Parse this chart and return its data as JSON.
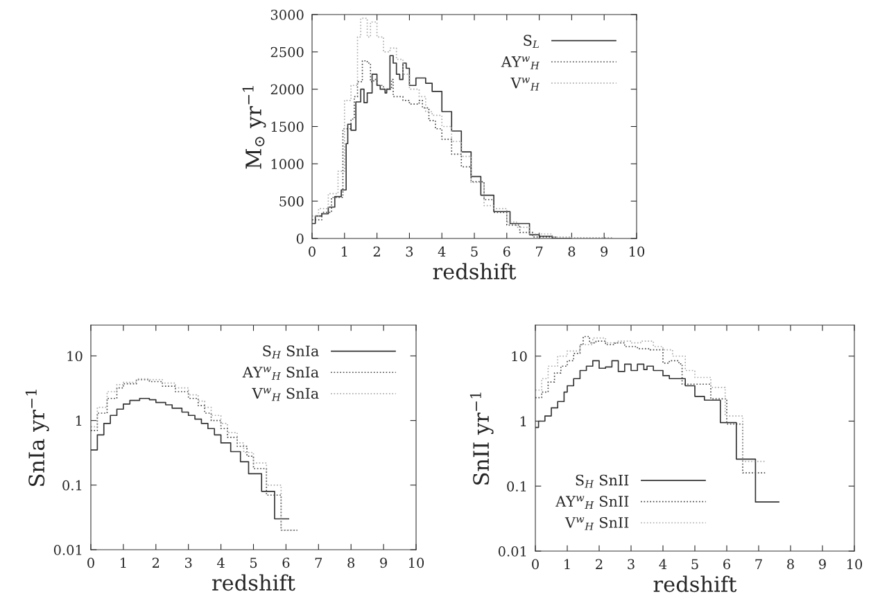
{
  "chart_data": [
    {
      "type": "step",
      "xlabel": "redshift",
      "ylabel": "M$_{⊙}$ yr$^{−1}$",
      "xlim": [
        0,
        10
      ],
      "ylim": [
        0,
        3000
      ],
      "xticks": [
        0,
        1,
        2,
        3,
        4,
        5,
        6,
        7,
        8,
        9,
        10
      ],
      "yticks": [
        0,
        500,
        1000,
        1500,
        2000,
        2500,
        3000
      ],
      "legend": "top right",
      "grid": false,
      "series": [
        {
          "name": "S$_{L}$",
          "color": "#333333",
          "line_style": "solid",
          "x": [
            0,
            0.1,
            0.3,
            0.5,
            0.7,
            0.9,
            1.05,
            1.1,
            1.2,
            1.35,
            1.5,
            1.6,
            1.7,
            1.85,
            2.0,
            2.1,
            2.25,
            2.3,
            2.4,
            2.5,
            2.6,
            2.7,
            2.8,
            2.9,
            3.0,
            3.2,
            3.5,
            3.7,
            4.0,
            4.3,
            4.6,
            4.9,
            5.2,
            5.6,
            6.1,
            6.7,
            7.0,
            7.4,
            8.0
          ],
          "values": [
            200,
            300,
            330,
            420,
            560,
            650,
            1270,
            1530,
            1450,
            1830,
            2000,
            1820,
            1950,
            2200,
            2050,
            2000,
            1950,
            2000,
            2450,
            2350,
            2200,
            2130,
            2350,
            2280,
            2050,
            2150,
            2080,
            1970,
            1700,
            1440,
            1160,
            830,
            580,
            360,
            200,
            50,
            30,
            0,
            0
          ]
        },
        {
          "name": "AY$^{w}$$_{H}$",
          "color": "#444444",
          "line_style": "dotted",
          "x": [
            0,
            0.3,
            0.6,
            0.95,
            1.2,
            1.3,
            1.4,
            1.55,
            1.7,
            1.8,
            1.9,
            2.0,
            2.2,
            2.45,
            2.5,
            2.8,
            3.0,
            3.3,
            3.4,
            3.6,
            3.8,
            4.0,
            4.3,
            4.6,
            4.9,
            5.3,
            5.6,
            6.0,
            6.4,
            6.8,
            7.5,
            8.0
          ],
          "values": [
            250,
            350,
            550,
            1470,
            1600,
            1900,
            2100,
            2380,
            2350,
            2100,
            2130,
            2050,
            2000,
            2130,
            1900,
            1850,
            1800,
            1850,
            1750,
            1580,
            1470,
            1330,
            1130,
            960,
            760,
            520,
            350,
            180,
            80,
            20,
            0,
            0
          ]
        },
        {
          "name": "V$^{w}$$_{H}$",
          "color": "#aaaaaa",
          "line_style": "dotted",
          "x": [
            0,
            0.2,
            0.5,
            0.8,
            1.0,
            1.2,
            1.4,
            1.5,
            1.7,
            1.8,
            2.0,
            2.2,
            2.4,
            2.6,
            2.8,
            3.0,
            3.3,
            3.5,
            3.7,
            4.0,
            4.3,
            4.6,
            4.9,
            5.3,
            5.6,
            6.0,
            6.3,
            6.7,
            7.4,
            8.0,
            9.3
          ],
          "values": [
            300,
            400,
            600,
            900,
            1850,
            2050,
            2700,
            2950,
            2700,
            2900,
            2700,
            2500,
            2550,
            2400,
            2200,
            2000,
            1900,
            1700,
            1650,
            1500,
            1300,
            1100,
            750,
            440,
            400,
            220,
            150,
            60,
            20,
            10,
            10
          ]
        }
      ]
    },
    {
      "type": "step",
      "xlabel": "redshift",
      "ylabel": "SnIa yr$^{−1}$",
      "log": true,
      "xlim": [
        0,
        10
      ],
      "ylim": [
        0.01,
        30
      ],
      "xticks": [
        0,
        1,
        2,
        3,
        4,
        5,
        6,
        7,
        8,
        9,
        10
      ],
      "yticks": [
        0.01,
        0.1,
        1,
        10
      ],
      "legend": "top right",
      "grid": false,
      "series": [
        {
          "name": "S$_{H}$ SnIa",
          "color": "#333333",
          "line_style": "solid",
          "x": [
            0,
            0.2,
            0.4,
            0.6,
            0.8,
            1.0,
            1.2,
            1.5,
            1.8,
            2.0,
            2.3,
            2.5,
            2.8,
            3.0,
            3.2,
            3.4,
            3.6,
            3.8,
            4.0,
            4.3,
            4.6,
            4.85,
            5.25,
            5.65,
            6.1
          ],
          "values": [
            0.35,
            0.6,
            0.9,
            1.2,
            1.5,
            1.8,
            2.05,
            2.2,
            2.1,
            1.9,
            1.75,
            1.55,
            1.35,
            1.2,
            1.05,
            0.9,
            0.75,
            0.6,
            0.45,
            0.33,
            0.23,
            0.15,
            0.08,
            0.03,
            0.03
          ]
        },
        {
          "name": "AY$^{w}$$_{H}$ SnIa",
          "color": "#444444",
          "line_style": "dotted",
          "x": [
            0,
            0.2,
            0.5,
            0.8,
            1.0,
            1.4,
            1.8,
            2.2,
            2.6,
            3.0,
            3.3,
            3.5,
            3.7,
            4.0,
            4.2,
            4.5,
            4.8,
            5.0,
            5.4,
            5.85,
            6.35
          ],
          "values": [
            0.7,
            1.3,
            2.2,
            3.2,
            3.7,
            4.3,
            4.0,
            3.4,
            2.8,
            2.2,
            1.7,
            1.3,
            1.0,
            0.75,
            0.55,
            0.4,
            0.28,
            0.18,
            0.07,
            0.02,
            0.02
          ]
        },
        {
          "name": "V$^{w}$$_{H}$ SnIa",
          "color": "#aaaaaa",
          "line_style": "dotted",
          "x": [
            0,
            0.2,
            0.5,
            0.8,
            1.0,
            1.4,
            1.8,
            2.2,
            2.6,
            3.0,
            3.3,
            3.5,
            3.7,
            4.0,
            4.2,
            4.5,
            4.7,
            5.0,
            5.4,
            5.85,
            6.35
          ],
          "values": [
            0.8,
            1.6,
            2.8,
            3.6,
            3.9,
            4.4,
            4.3,
            3.8,
            3.2,
            2.5,
            2.0,
            1.6,
            1.2,
            0.9,
            0.65,
            0.45,
            0.32,
            0.22,
            0.1,
            0.02,
            0.02
          ]
        }
      ]
    },
    {
      "type": "step",
      "xlabel": "redshift",
      "ylabel": "SnII yr$^{−1}$",
      "log": true,
      "xlim": [
        0,
        10
      ],
      "ylim": [
        0.01,
        30
      ],
      "xticks": [
        0,
        1,
        2,
        3,
        4,
        5,
        6,
        7,
        8,
        9,
        10
      ],
      "yticks": [
        0.01,
        0.1,
        1,
        10
      ],
      "legend": "bottom left",
      "grid": false,
      "series": [
        {
          "name": "S$_{H}$ SnII",
          "color": "#333333",
          "line_style": "solid",
          "x": [
            0,
            0.1,
            0.3,
            0.5,
            0.7,
            0.9,
            1.0,
            1.2,
            1.4,
            1.6,
            1.8,
            2.0,
            2.2,
            2.4,
            2.6,
            2.8,
            3.0,
            3.2,
            3.4,
            3.5,
            3.7,
            4.0,
            4.2,
            4.7,
            5.0,
            5.3,
            5.8,
            6.3,
            6.9,
            7.65
          ],
          "values": [
            0.8,
            1.0,
            1.2,
            1.6,
            2.0,
            2.8,
            3.5,
            4.5,
            6.0,
            7.0,
            8.5,
            6.5,
            6.8,
            8.5,
            5.8,
            7.5,
            6.0,
            7.5,
            6.2,
            7.0,
            6.0,
            5.0,
            4.5,
            3.5,
            2.4,
            2.1,
            0.95,
            0.26,
            0.057,
            0.057
          ]
        },
        {
          "name": "AY$^{w}$$_{H}$ SnII",
          "color": "#444444",
          "line_style": "dotted",
          "x": [
            0,
            0.2,
            0.4,
            0.6,
            0.8,
            1.0,
            1.2,
            1.4,
            1.5,
            1.7,
            1.9,
            2.2,
            2.5,
            2.8,
            3.2,
            3.6,
            4.0,
            4.2,
            4.5,
            4.6,
            5.0,
            5.5,
            6.0,
            6.5,
            7.2
          ],
          "values": [
            2.3,
            2.8,
            4.0,
            5.5,
            7.0,
            8.5,
            11,
            15,
            20,
            16,
            17,
            15,
            16,
            14,
            13,
            12.5,
            7.8,
            8.5,
            7.6,
            3.7,
            3.7,
            2.2,
            0.9,
            0.16,
            0.16
          ]
        },
        {
          "name": "V$^{w}$$_{H}$ SnII",
          "color": "#aaaaaa",
          "line_style": "dotted",
          "x": [
            0,
            0.2,
            0.4,
            0.7,
            1.0,
            1.4,
            1.8,
            2.2,
            2.6,
            3.0,
            3.3,
            3.7,
            4.0,
            4.3,
            4.7,
            5.0,
            5.5,
            5.95,
            6.5,
            7.2
          ],
          "values": [
            3.0,
            4.5,
            7,
            10,
            12,
            15,
            19,
            16,
            17,
            16,
            17,
            14,
            12.5,
            10,
            6.0,
            4.7,
            3.3,
            1.2,
            0.24,
            0.24
          ]
        }
      ]
    }
  ]
}
